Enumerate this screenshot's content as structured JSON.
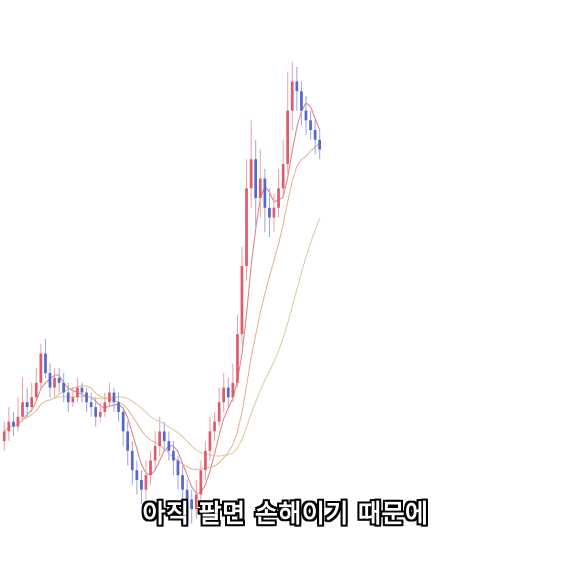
{
  "video": {
    "subtitle": "아직 팔면 손해이기 때문에"
  },
  "chart_data": {
    "type": "candlestick",
    "title": "",
    "xlabel": "",
    "ylabel": "",
    "ylim": [
      0,
      100
    ],
    "colors": {
      "up": "#e05a6a",
      "down": "#5566cc",
      "wick_up": "#e8a0aa",
      "wick_down": "#9aa6e0",
      "ma_fast": "#d98080",
      "ma_mid": "#e2b08f",
      "ma_slow": "#ddc7a0"
    },
    "candles": [
      [
        22,
        24,
        26,
        20
      ],
      [
        24,
        26,
        29,
        22
      ],
      [
        26,
        25,
        28,
        23
      ],
      [
        25,
        27,
        31,
        24
      ],
      [
        27,
        30,
        35,
        26
      ],
      [
        30,
        29,
        33,
        27
      ],
      [
        29,
        31,
        34,
        28
      ],
      [
        31,
        34,
        37,
        30
      ],
      [
        34,
        40,
        42,
        33
      ],
      [
        40,
        36,
        43,
        35
      ],
      [
        36,
        33,
        38,
        31
      ],
      [
        33,
        35,
        37,
        31
      ],
      [
        35,
        34,
        37,
        32
      ],
      [
        34,
        32,
        36,
        30
      ],
      [
        32,
        30,
        34,
        28
      ],
      [
        30,
        31,
        33,
        29
      ],
      [
        31,
        33,
        35,
        30
      ],
      [
        33,
        32,
        34,
        30
      ],
      [
        32,
        30,
        33,
        28
      ],
      [
        30,
        29,
        32,
        27
      ],
      [
        29,
        27,
        31,
        25
      ],
      [
        27,
        28,
        30,
        26
      ],
      [
        28,
        30,
        32,
        27
      ],
      [
        30,
        32,
        34,
        29
      ],
      [
        32,
        30,
        33,
        28
      ],
      [
        30,
        28,
        32,
        26
      ],
      [
        28,
        24,
        29,
        21
      ],
      [
        24,
        20,
        26,
        17
      ],
      [
        20,
        16,
        22,
        13
      ],
      [
        16,
        14,
        18,
        11
      ],
      [
        14,
        12,
        16,
        9
      ],
      [
        12,
        15,
        18,
        10
      ],
      [
        15,
        18,
        20,
        13
      ],
      [
        18,
        21,
        24,
        16
      ],
      [
        21,
        24,
        27,
        19
      ],
      [
        24,
        22,
        26,
        20
      ],
      [
        22,
        20,
        24,
        18
      ],
      [
        20,
        18,
        22,
        15
      ],
      [
        18,
        15,
        19,
        12
      ],
      [
        15,
        12,
        17,
        9
      ],
      [
        12,
        10,
        14,
        7
      ],
      [
        10,
        8,
        12,
        5
      ],
      [
        8,
        11,
        14,
        6
      ],
      [
        11,
        16,
        18,
        9
      ],
      [
        16,
        20,
        22,
        14
      ],
      [
        20,
        24,
        27,
        18
      ],
      [
        24,
        26,
        28,
        22
      ],
      [
        26,
        30,
        33,
        25
      ],
      [
        30,
        33,
        36,
        28
      ],
      [
        33,
        31,
        35,
        29
      ],
      [
        31,
        34,
        38,
        30
      ],
      [
        34,
        44,
        48,
        33
      ],
      [
        44,
        58,
        62,
        42
      ],
      [
        58,
        74,
        80,
        55
      ],
      [
        74,
        80,
        88,
        70
      ],
      [
        80,
        72,
        84,
        66
      ],
      [
        72,
        76,
        82,
        68
      ],
      [
        76,
        70,
        78,
        65
      ],
      [
        70,
        68,
        74,
        64
      ],
      [
        68,
        70,
        73,
        65
      ],
      [
        70,
        74,
        78,
        68
      ],
      [
        74,
        79,
        84,
        72
      ],
      [
        79,
        90,
        98,
        77
      ],
      [
        90,
        96,
        100,
        86
      ],
      [
        96,
        94,
        99,
        90
      ],
      [
        94,
        90,
        96,
        87
      ],
      [
        90,
        88,
        93,
        85
      ],
      [
        88,
        86,
        90,
        84
      ],
      [
        86,
        84,
        88,
        81
      ],
      [
        84,
        82,
        86,
        80
      ]
    ]
  }
}
